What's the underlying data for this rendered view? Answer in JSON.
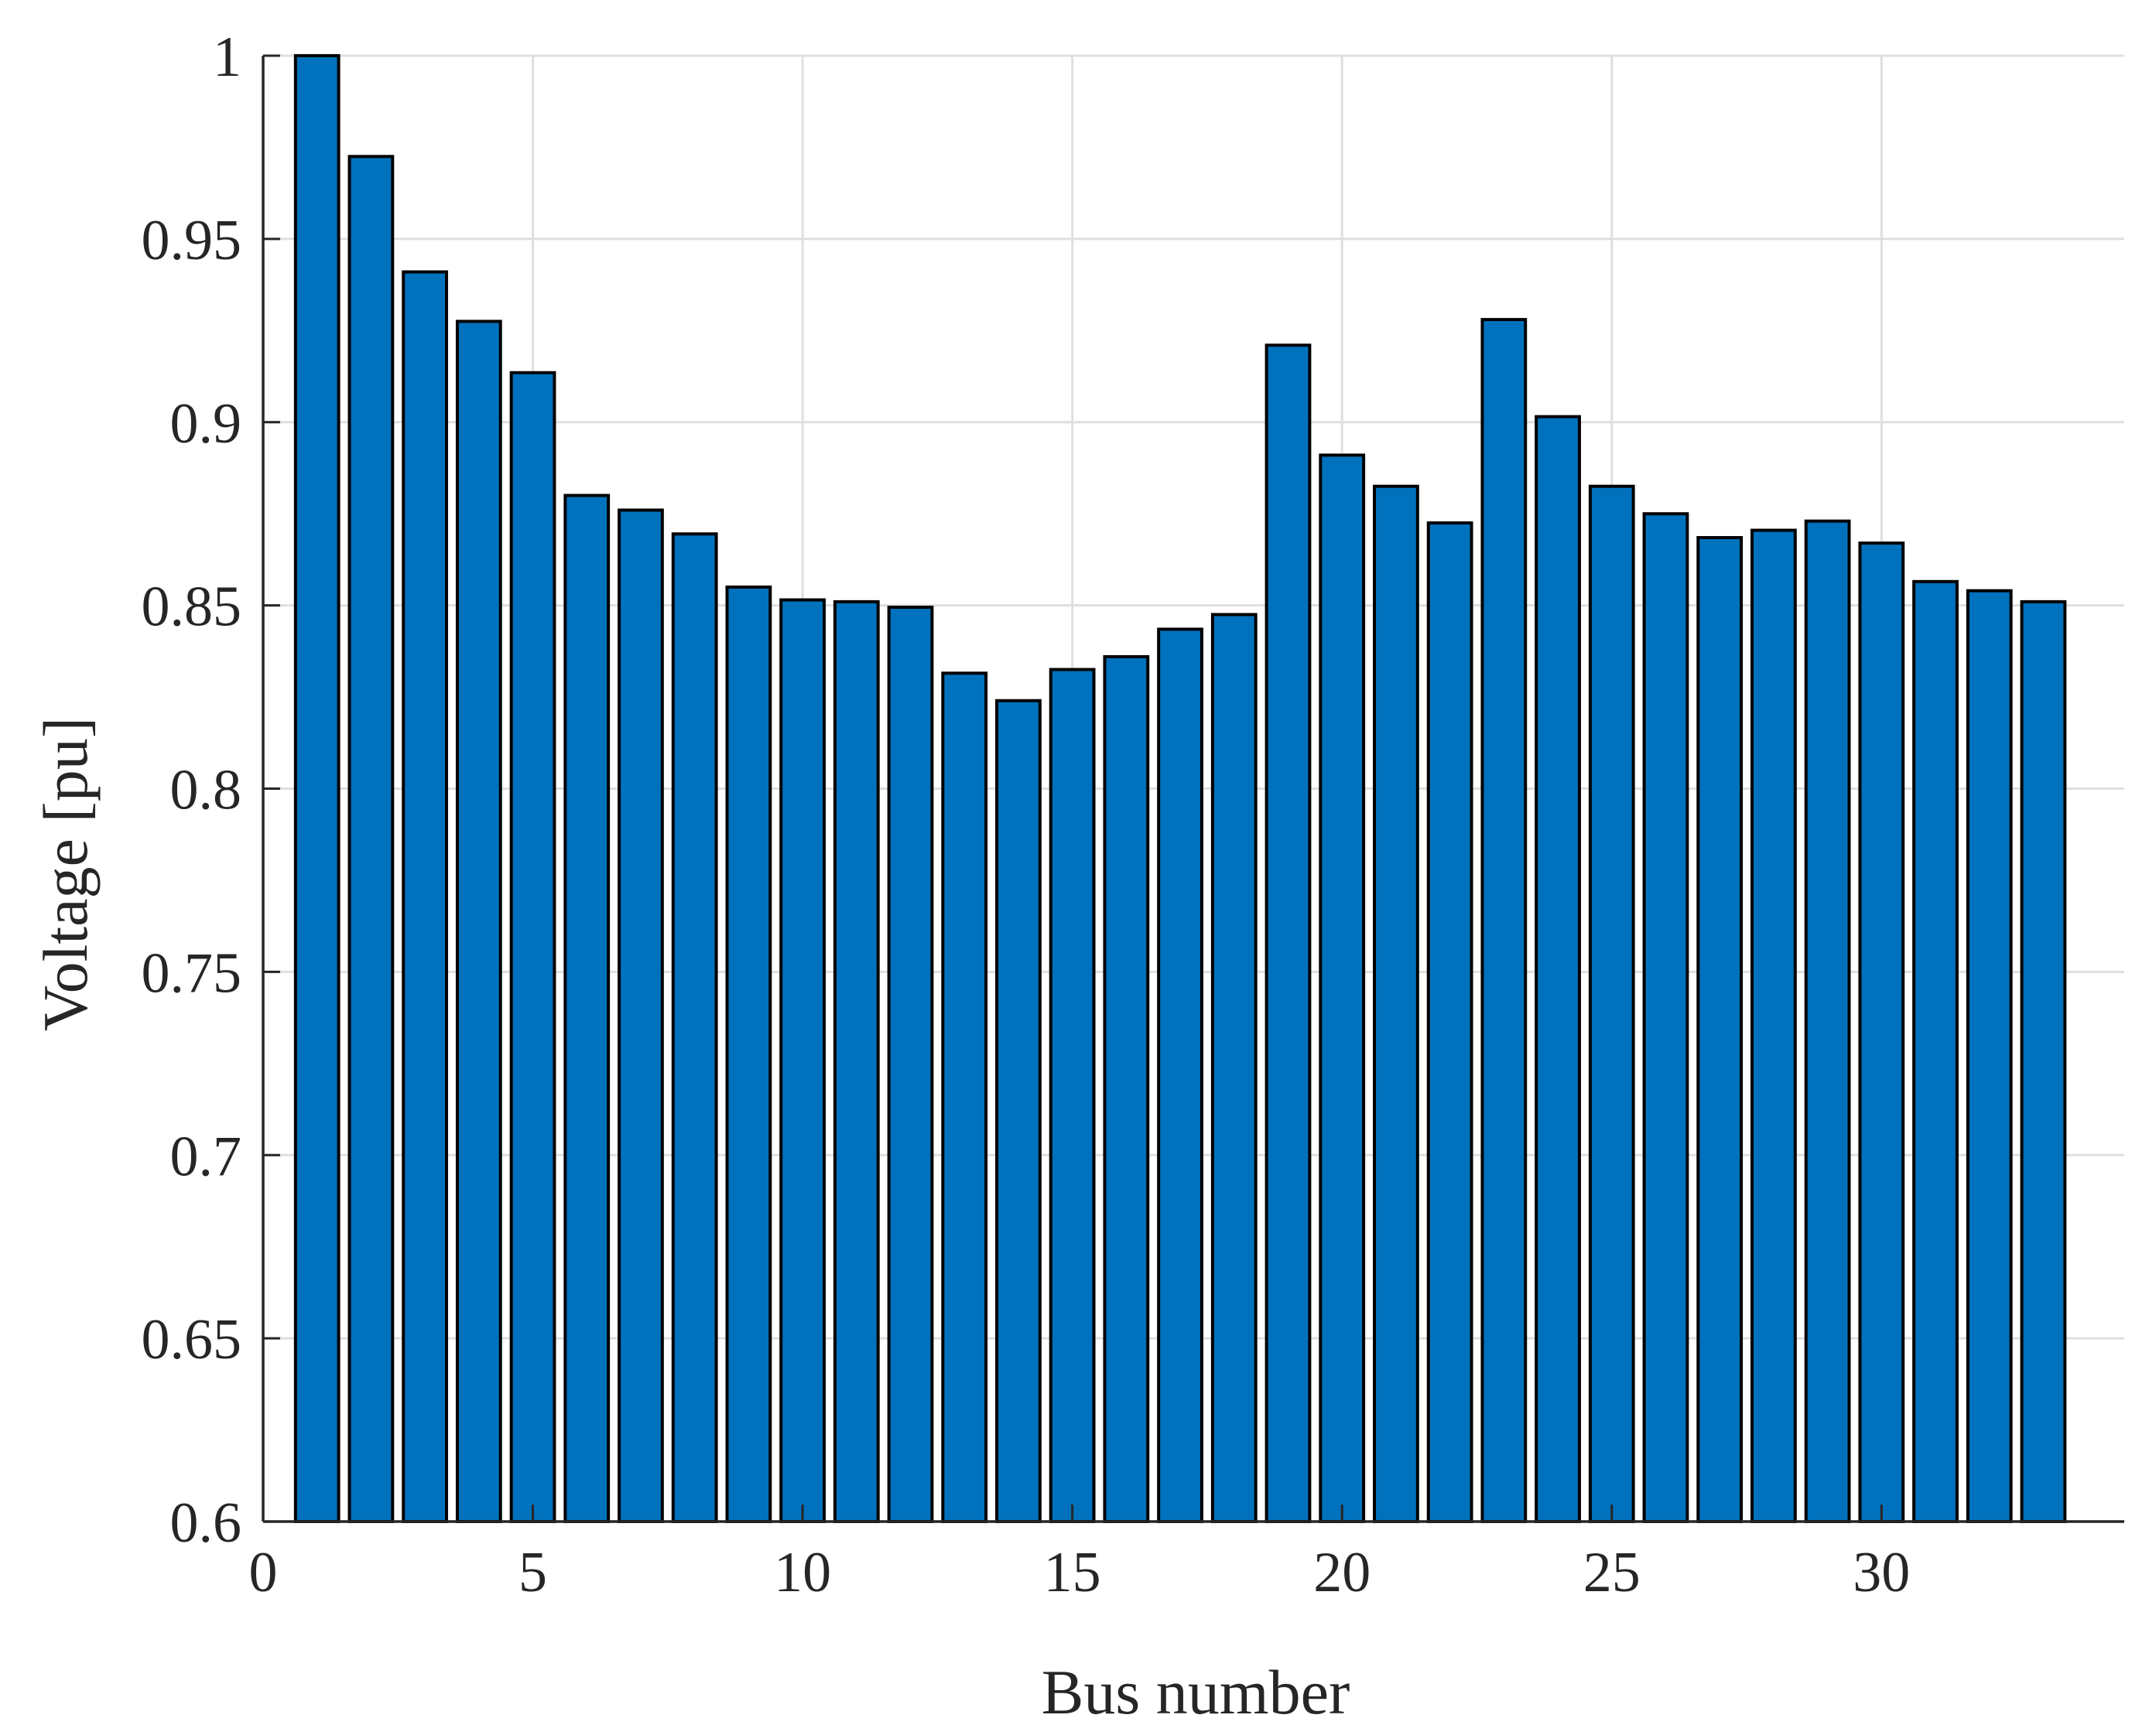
{
  "chart_data": {
    "type": "bar",
    "title": "",
    "xlabel": "Bus number",
    "ylabel": "Voltage [pu]",
    "xlim": [
      0,
      34.5
    ],
    "ylim": [
      0.6,
      1.0
    ],
    "xticks": [
      0,
      5,
      10,
      15,
      20,
      25,
      30
    ],
    "yticks": [
      0.6,
      0.65,
      0.7,
      0.75,
      0.8,
      0.85,
      0.9,
      0.95,
      1.0
    ],
    "xtick_labels": [
      "0",
      "5",
      "10",
      "15",
      "20",
      "25",
      "30"
    ],
    "ytick_labels": [
      "0.6",
      "0.65",
      "0.7",
      "0.75",
      "0.8",
      "0.85",
      "0.9",
      "0.95",
      "1"
    ],
    "grid": true,
    "bar_color": "#0072BD",
    "bar_edge_color": "#000000",
    "categories": [
      1,
      2,
      3,
      4,
      5,
      6,
      7,
      8,
      9,
      10,
      11,
      12,
      13,
      14,
      15,
      16,
      17,
      18,
      19,
      20,
      21,
      22,
      23,
      24,
      25,
      26,
      27,
      28,
      29,
      30,
      31,
      32,
      33
    ],
    "values": [
      1.0,
      0.9725,
      0.941,
      0.9275,
      0.9135,
      0.88,
      0.876,
      0.8695,
      0.855,
      0.8515,
      0.851,
      0.8495,
      0.8315,
      0.824,
      0.8325,
      0.836,
      0.8435,
      0.8475,
      0.921,
      0.891,
      0.8825,
      0.8725,
      0.928,
      0.9015,
      0.8825,
      0.875,
      0.8685,
      0.8705,
      0.873,
      0.867,
      0.8565,
      0.854,
      0.851
    ]
  }
}
